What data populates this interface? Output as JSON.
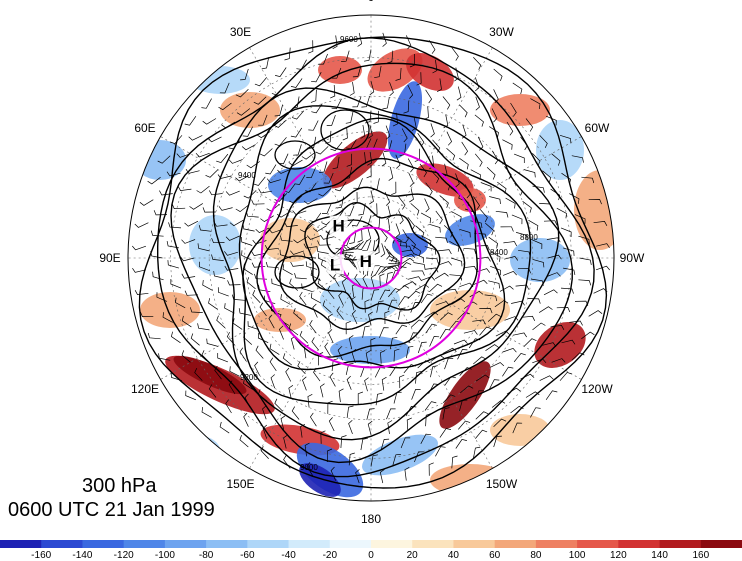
{
  "map": {
    "projection": "north polar stereographic",
    "longitude_labels": [
      {
        "text": "0",
        "lon": 0
      },
      {
        "text": "30W",
        "lon": -30
      },
      {
        "text": "60W",
        "lon": -60
      },
      {
        "text": "90W",
        "lon": -90
      },
      {
        "text": "120W",
        "lon": -120
      },
      {
        "text": "150W",
        "lon": -150
      },
      {
        "text": "180",
        "lon": 180
      },
      {
        "text": "150E",
        "lon": 150
      },
      {
        "text": "120E",
        "lon": 120
      },
      {
        "text": "90E",
        "lon": 90
      },
      {
        "text": "60E",
        "lon": 60
      },
      {
        "text": "30E",
        "lon": 30
      }
    ],
    "pressure_markers": [
      {
        "text": "H",
        "lat": 75,
        "lon": 45
      },
      {
        "text": "H",
        "lat": 88,
        "lon": 120
      },
      {
        "text": "L",
        "lat": 78,
        "lon": 100
      }
    ],
    "contour_labels": [
      "9600",
      "9400",
      "9200",
      "9000",
      "8800",
      "8600",
      "8400"
    ],
    "magenta_circles_lat": [
      80,
      55
    ],
    "colors": {
      "contour": "#000000",
      "circle": "#e000e0",
      "positive_max": "#8b0000",
      "negative_max": "#0000c8"
    }
  },
  "title": {
    "line1": "300 hPa",
    "line2": "0600 UTC 21 Jan 1999"
  },
  "colorbar": {
    "ticks": [
      "-160",
      "-140",
      "-120",
      "-100",
      "-80",
      "-60",
      "-40",
      "-20",
      "0",
      "20",
      "40",
      "60",
      "80",
      "100",
      "120",
      "140",
      "160"
    ],
    "colors": [
      "#1e22b4",
      "#2c49d2",
      "#3a68e0",
      "#4f86e8",
      "#6da3ef",
      "#8cbef4",
      "#aed6f8",
      "#d2ebfb",
      "#ecf7fd",
      "#fdf5df",
      "#fbe3bd",
      "#f8c99a",
      "#f3a77a",
      "#ee8062",
      "#e5584a",
      "#d23232",
      "#b21b1f",
      "#8b0a10"
    ]
  }
}
